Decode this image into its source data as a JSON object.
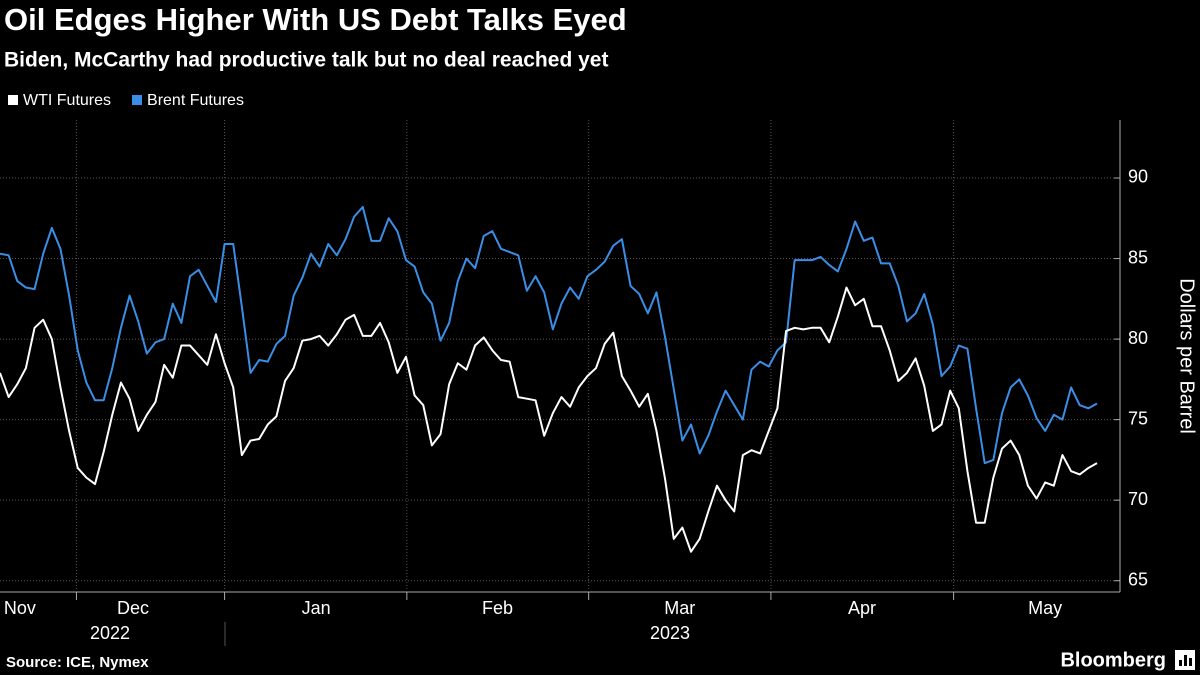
{
  "chart_data": {
    "type": "line",
    "title": "Oil Edges Higher With US Debt Talks Eyed",
    "subtitle": "Biden, McCarthy had productive talk but no deal reached yet",
    "y_label": "Dollars per Barrel",
    "source": "Source: ICE, Nymex",
    "brand": "Bloomberg",
    "xlim": [
      0,
      127
    ],
    "xticks": [
      {
        "value": 2.3,
        "label": "Nov"
      },
      {
        "value": 15.4,
        "label": "Dec"
      },
      {
        "value": 36.6,
        "label": "Jan"
      },
      {
        "value": 57.6,
        "label": "Feb"
      },
      {
        "value": 78.7,
        "label": "Mar"
      },
      {
        "value": 99.8,
        "label": "Apr"
      },
      {
        "value": 121,
        "label": "May"
      }
    ],
    "years": [
      "2022",
      "2023"
    ],
    "ylim": [
      64.3,
      93.6
    ],
    "yticks": [
      65,
      70,
      75,
      80,
      85,
      90
    ],
    "grid": true,
    "series": [
      {
        "name": "WTI Futures",
        "color": "#ffffff",
        "values": [
          77.9,
          76.4,
          77.2,
          78.2,
          80.7,
          81.2,
          80,
          77,
          74.3,
          72,
          71.4,
          71,
          73,
          75.3,
          77.3,
          76.3,
          74.3,
          75.3,
          76.1,
          78.4,
          77.6,
          79.6,
          79.6,
          79,
          78.4,
          80.3,
          78.5,
          77,
          72.8,
          73.7,
          73.8,
          74.7,
          75.2,
          77.4,
          78.2,
          79.9,
          80,
          80.2,
          79.6,
          80.3,
          81.2,
          81.5,
          80.2,
          80.2,
          81,
          79.8,
          77.9,
          78.9,
          76.5,
          75.9,
          73.4,
          74.1,
          77.2,
          78.5,
          78.1,
          79.6,
          80.1,
          79.3,
          78.7,
          78.6,
          76.4,
          76.3,
          76.2,
          74,
          75.4,
          76.4,
          75.8,
          77,
          77.7,
          78.2,
          79.7,
          80.4,
          77.7,
          76.8,
          75.8,
          76.6,
          74.3,
          71.3,
          67.6,
          68.3,
          66.8,
          67.6,
          69.3,
          70.9,
          70,
          69.3,
          72.8,
          73.1,
          72.9,
          74.3,
          75.7,
          80.5,
          80.7,
          80.6,
          80.7,
          80.7,
          79.8,
          81.4,
          83.2,
          82.1,
          82.5,
          80.8,
          80.8,
          79.3,
          77.4,
          77.9,
          78.8,
          77.1,
          74.3,
          74.7,
          76.8,
          75.7,
          71.8,
          68.6,
          68.6,
          71.4,
          73.2,
          73.7,
          72.8,
          70.9,
          70.1,
          71.1,
          70.9,
          72.8,
          71.8,
          71.6,
          72,
          72.3
        ]
      },
      {
        "name": "Brent Futures",
        "color": "#3a8ee6",
        "values": [
          85.3,
          85.2,
          83.6,
          83.2,
          83.1,
          85.3,
          86.9,
          85.6,
          82.7,
          79.3,
          77.3,
          76.2,
          76.2,
          78.2,
          80.7,
          82.7,
          81.1,
          79.1,
          79.8,
          80,
          82.2,
          81,
          83.9,
          84.3,
          83.3,
          82.3,
          85.9,
          85.9,
          82,
          77.9,
          78.7,
          78.6,
          79.7,
          80.2,
          82.7,
          83.8,
          85.3,
          84.5,
          85.9,
          85.2,
          86.2,
          87.6,
          88.2,
          86.1,
          86.1,
          87.5,
          86.7,
          84.9,
          84.5,
          82.9,
          82.2,
          79.9,
          81,
          83.6,
          85,
          84.4,
          86.4,
          86.7,
          85.6,
          85.4,
          85.2,
          83,
          83.9,
          82.9,
          80.6,
          82.2,
          83.2,
          82.5,
          83.9,
          84.3,
          84.8,
          85.8,
          86.2,
          83.3,
          82.8,
          81.6,
          82.9,
          80.1,
          76.9,
          73.7,
          74.7,
          72.9,
          74,
          75.5,
          76.8,
          75.9,
          75,
          78.1,
          78.6,
          78.3,
          79.3,
          79.8,
          84.9,
          84.9,
          84.9,
          85.1,
          84.6,
          84.2,
          85.6,
          87.3,
          86.1,
          86.3,
          84.7,
          84.7,
          83.3,
          81.1,
          81.6,
          82.8,
          80.9,
          77.7,
          78.3,
          79.6,
          79.4,
          75.7,
          72.3,
          72.5,
          75.4,
          77,
          77.5,
          76.5,
          75.1,
          74.3,
          75.3,
          75,
          77,
          75.9,
          75.7,
          76
        ]
      }
    ]
  }
}
